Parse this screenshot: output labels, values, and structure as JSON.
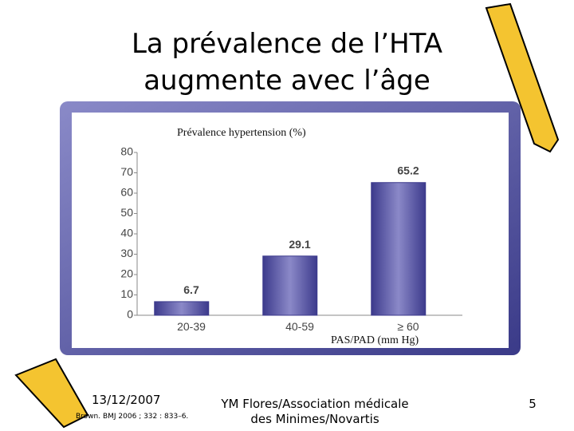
{
  "slide": {
    "title": [
      "La prévalence de l’HTA",
      "augmente avec l’âge"
    ],
    "date": "13/12/2007",
    "author": [
      "YM Flores/Association médicale",
      "des Minimes/Novartis"
    ],
    "page": "5",
    "source": "Brown. BMJ 2006 ; 332 : 833–6."
  },
  "chart_data": {
    "type": "bar",
    "y_label": "Prévalence hypertension (%)",
    "x_label": "PAS/PAD (mm Hg)",
    "categories": [
      "20-39",
      "40-59",
      "≥ 60"
    ],
    "values": [
      6.7,
      29.1,
      65.2
    ],
    "color": "#3c3a8c",
    "ylim": [
      0,
      80
    ],
    "yticks": [
      0,
      10,
      20,
      30,
      40,
      50,
      60,
      70,
      80
    ],
    "grid": false
  }
}
